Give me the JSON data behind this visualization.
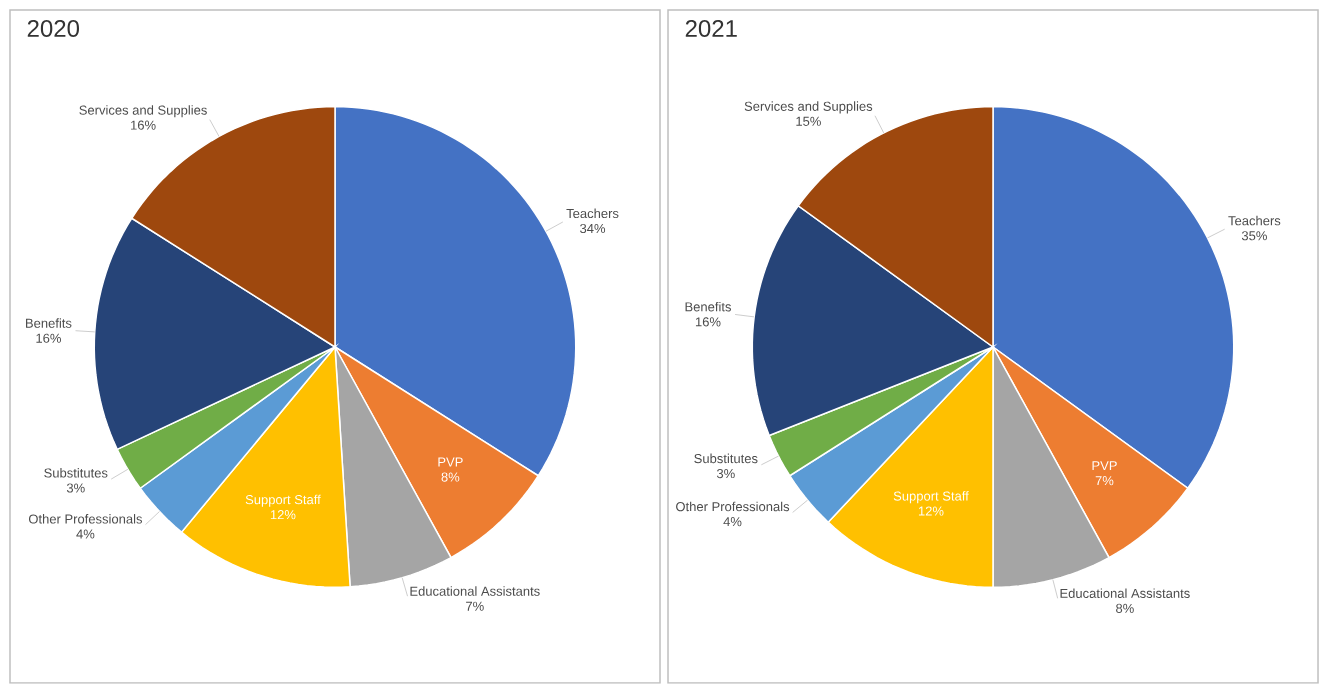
{
  "chart_data": [
    {
      "type": "pie",
      "title": "2020",
      "categories": [
        "Teachers",
        "PVP",
        "Educational Assistants",
        "Support Staff",
        "Other Professionals",
        "Substitutes",
        "Benefits",
        "Services and Supplies"
      ],
      "values": [
        34,
        8,
        7,
        12,
        4,
        3,
        16,
        16
      ],
      "value_labels": [
        "34%",
        "8%",
        "7%",
        "12%",
        "4%",
        "3%",
        "16%",
        "16%"
      ],
      "colors": [
        "#4472c4",
        "#ed7d31",
        "#a5a5a5",
        "#ffc000",
        "#5b9bd5",
        "#70ad47",
        "#264478",
        "#9e480e"
      ]
    },
    {
      "type": "pie",
      "title": "2021",
      "categories": [
        "Teachers",
        "PVP",
        "Educational Assistants",
        "Support Staff",
        "Other Professionals",
        "Substitutes",
        "Benefits",
        "Services and Supplies"
      ],
      "values": [
        35,
        7,
        8,
        12,
        4,
        3,
        16,
        15
      ],
      "value_labels": [
        "35%",
        "7%",
        "8%",
        "12%",
        "4%",
        "3%",
        "16%",
        "15%"
      ],
      "colors": [
        "#4472c4",
        "#ed7d31",
        "#a5a5a5",
        "#ffc000",
        "#5b9bd5",
        "#70ad47",
        "#264478",
        "#9e480e"
      ]
    }
  ]
}
